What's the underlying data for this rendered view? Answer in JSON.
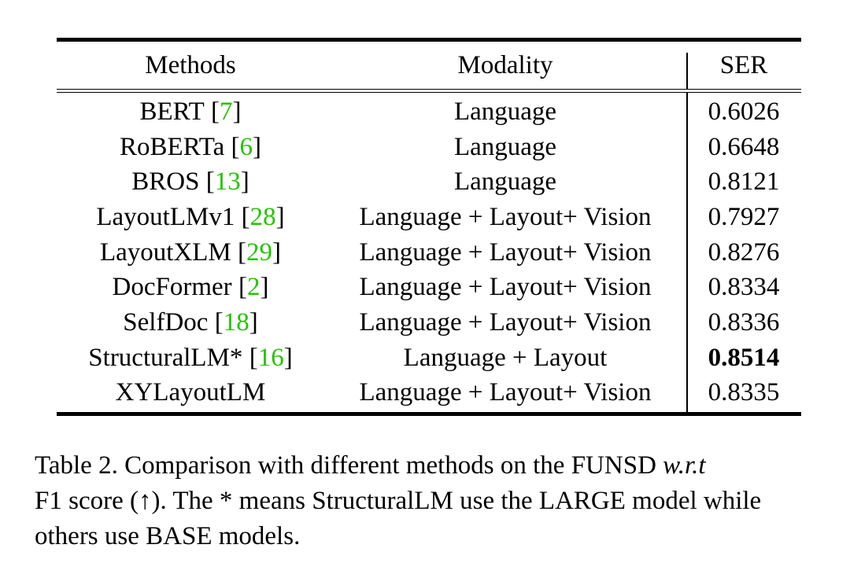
{
  "table": {
    "headers": {
      "methods": "Methods",
      "modality": "Modality",
      "ser": "SER"
    },
    "rows": [
      {
        "method": "BERT",
        "ref": "7",
        "modality": "Language",
        "ser": "0.6026"
      },
      {
        "method": "RoBERTa",
        "ref": "6",
        "modality": "Language",
        "ser": "0.6648"
      },
      {
        "method": "BROS",
        "ref": "13",
        "modality": "Language",
        "ser": "0.8121"
      },
      {
        "method": "LayoutLMv1",
        "ref": "28",
        "modality": "Language + Layout+ Vision",
        "ser": "0.7927"
      },
      {
        "method": "LayoutXLM",
        "ref": "29",
        "modality": "Language + Layout+ Vision",
        "ser": "0.8276"
      },
      {
        "method": "DocFormer",
        "ref": "2",
        "modality": "Language + Layout+ Vision",
        "ser": "0.8334"
      },
      {
        "method": "SelfDoc",
        "ref": "18",
        "modality": "Language + Layout+ Vision",
        "ser": "0.8336"
      },
      {
        "method": "StructuralLM*",
        "ref": "16",
        "modality": "Language + Layout",
        "ser": "0.8514"
      },
      {
        "method": "XYLayoutLM",
        "ref": "",
        "modality": "Language + Layout+ Vision",
        "ser": "0.8335"
      }
    ]
  },
  "caption": {
    "part1": "Table 2. Comparison with different methods on the FUNSD ",
    "italic": "w.r.t",
    "part2": "F1 score (↑). The * means StructuralLM use the LARGE model while others use BASE models."
  },
  "colors": {
    "reference_link": "#22c400"
  }
}
